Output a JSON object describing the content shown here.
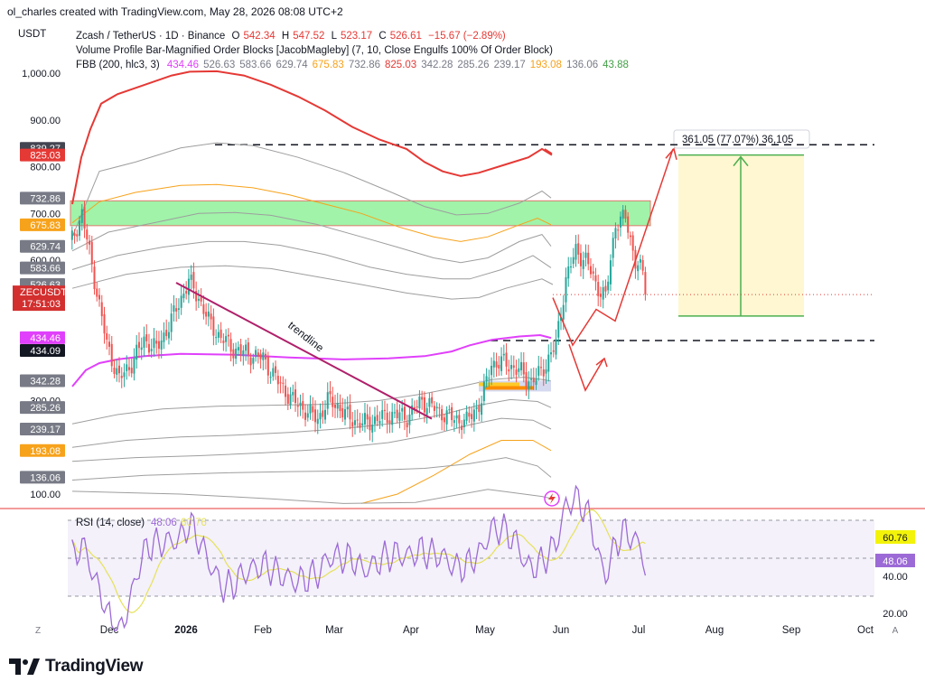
{
  "header": {
    "credit": "ol_charles created with TradingView.com, May 28, 2026 08:08 UTC+2"
  },
  "legend": {
    "currency": "USDT",
    "symbol_line": "Zcash / TetherUS · 1D · Binance",
    "ohlc": {
      "o_label": "O",
      "o": "542.34",
      "h_label": "H",
      "h": "547.52",
      "l_label": "L",
      "l": "523.17",
      "c_label": "C",
      "c": "526.61",
      "change": "−15.67 (−2.89%)"
    },
    "indicator_1": "Volume Profile Bar-Magnified Order Blocks [JacobMagleby] (7, 10, Close Engulfs 100% Of Order Block)",
    "indicator_2_name": "FBB (200, hlc3, 3)",
    "indicator_2_values": [
      {
        "v": "434.46",
        "color": "#e040fb"
      },
      {
        "v": "526.63",
        "color": "#787b86"
      },
      {
        "v": "583.66",
        "color": "#787b86"
      },
      {
        "v": "629.74",
        "color": "#787b86"
      },
      {
        "v": "675.83",
        "color": "#f7a21b"
      },
      {
        "v": "732.86",
        "color": "#787b86"
      },
      {
        "v": "825.03",
        "color": "#e53935"
      },
      {
        "v": "342.28",
        "color": "#787b86"
      },
      {
        "v": "285.26",
        "color": "#787b86"
      },
      {
        "v": "239.17",
        "color": "#787b86"
      },
      {
        "v": "193.08",
        "color": "#f7a21b"
      },
      {
        "v": "136.06",
        "color": "#787b86"
      },
      {
        "v": "43.88",
        "color": "#43a047"
      }
    ]
  },
  "chart_data": {
    "type": "candlestick",
    "symbol": "ZECUSDT",
    "x_ticks": [
      "Dec",
      "2026",
      "Feb",
      "Mar",
      "Apr",
      "May",
      "Jun",
      "Jul",
      "Aug",
      "Sep",
      "Oct"
    ],
    "y_ticks": [
      "1,000.00",
      "900.00",
      "800.00",
      "700.00",
      "600.00",
      "500.00",
      "300.00",
      "100.00"
    ],
    "price_labels": [
      {
        "text": "839.27",
        "bg": "#434651",
        "fg": "#ffffff",
        "y": 839.27
      },
      {
        "text": "825.03",
        "bg": "#e53935",
        "fg": "#ffffff",
        "y": 825.03
      },
      {
        "text": "732.86",
        "bg": "#787b86",
        "fg": "#ffffff",
        "y": 732.86
      },
      {
        "text": "675.83",
        "bg": "#f7a21b",
        "fg": "#ffffff",
        "y": 675.83
      },
      {
        "text": "629.74",
        "bg": "#787b86",
        "fg": "#ffffff",
        "y": 629.74
      },
      {
        "text": "583.66",
        "bg": "#787b86",
        "fg": "#ffffff",
        "y": 583.66
      },
      {
        "text": "526.63",
        "bg": "#787b86",
        "fg": "#ffffff",
        "y": 548
      },
      {
        "text": "526.61",
        "bg": "#d32f2f",
        "fg": "#ffffff",
        "y": 526.61
      },
      {
        "text": "434.46",
        "bg": "#e040fb",
        "fg": "#ffffff",
        "y": 434.46
      },
      {
        "text": "434.09",
        "bg": "#131722",
        "fg": "#ffffff",
        "y": 407
      },
      {
        "text": "342.28",
        "bg": "#787b86",
        "fg": "#ffffff",
        "y": 342.28
      },
      {
        "text": "285.26",
        "bg": "#787b86",
        "fg": "#ffffff",
        "y": 285.26
      },
      {
        "text": "239.17",
        "bg": "#787b86",
        "fg": "#ffffff",
        "y": 239.17
      },
      {
        "text": "193.08",
        "bg": "#f7a21b",
        "fg": "#ffffff",
        "y": 193.08
      },
      {
        "text": "136.06",
        "bg": "#787b86",
        "fg": "#ffffff",
        "y": 136.06
      }
    ],
    "symbol_tag": {
      "name": "ZECUSDT",
      "countdown": "17:51:03"
    },
    "annotations": {
      "trendline_label": "trendline",
      "projection_label": "361.05 (77.07%) 36,105",
      "dashed_levels": [
        839.27,
        434.09
      ],
      "order_block_zone": [
        675.83,
        732.86
      ]
    },
    "series": [
      {
        "name": "FBB basis",
        "color": "#e040fb",
        "values_desc": "SMA 200 basis ~430-434"
      },
      {
        "name": "FBB upper 3",
        "color": "#e53935"
      },
      {
        "name": "FBB upper 1.618",
        "color": "#f7a21b"
      },
      {
        "name": "FBB lower 1.618",
        "color": "#f7a21b"
      }
    ],
    "ylim": [
      60,
      1060
    ]
  },
  "rsi": {
    "label": "RSI (14, close)",
    "v1": "48.06",
    "v2": "60.76",
    "axis": [
      "60.76",
      "48.06",
      "40.00",
      "20.00"
    ]
  },
  "footer": {
    "brand": "TradingView",
    "corner_left": "Z",
    "corner_right": "A"
  },
  "colors": {
    "up": "#26a69a",
    "down": "#ef5350",
    "red": "#e53935",
    "green": "#4caf50",
    "magenta": "#e040fb",
    "orange": "#f7a21b"
  }
}
